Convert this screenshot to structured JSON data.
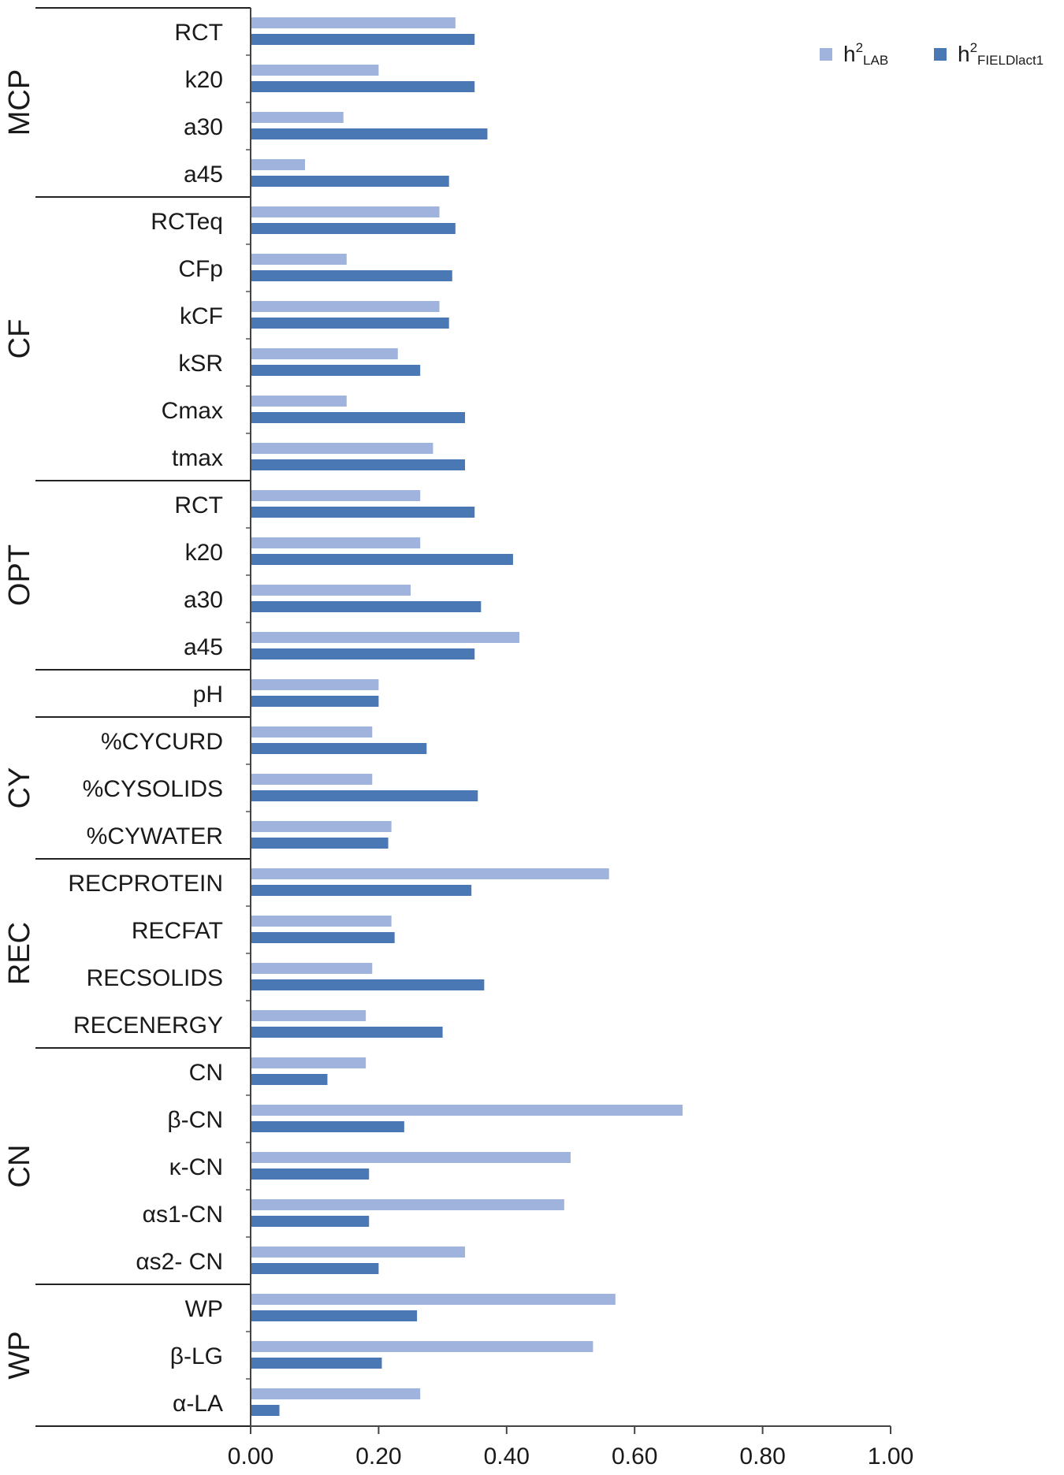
{
  "chart_data": {
    "type": "bar",
    "orientation": "horizontal",
    "xlim": [
      0,
      1
    ],
    "x_ticks": [
      "0.00",
      "0.20",
      "0.40",
      "0.60",
      "0.80",
      "1.00"
    ],
    "legend_placement": "top-right",
    "legend": [
      {
        "base": "h",
        "sup": "2",
        "sub": "LAB",
        "color": "#9fb3dc"
      },
      {
        "base": "h",
        "sup": "2",
        "sub": "FIELDlact1",
        "color": "#4a78b5"
      }
    ],
    "groups": [
      {
        "name": "MCP",
        "categories": [
          "RCT",
          "k20",
          "a30",
          "a45"
        ]
      },
      {
        "name": "CF",
        "categories": [
          "RCTeq",
          "CFp",
          "kCF",
          "kSR",
          "Cmax",
          "tmax"
        ]
      },
      {
        "name": "OPT",
        "categories": [
          "RCT",
          "k20",
          "a30",
          "a45"
        ]
      },
      {
        "name": "",
        "categories": [
          "pH"
        ]
      },
      {
        "name": "CY",
        "categories": [
          "%CYCURD",
          "%CYSOLIDS",
          "%CYWATER"
        ]
      },
      {
        "name": "REC",
        "categories": [
          "RECPROTEIN",
          "RECFAT",
          "RECSOLIDS",
          "RECENERGY"
        ]
      },
      {
        "name": "CN",
        "categories": [
          "CN",
          "β-CN",
          "κ-CN",
          "αs1-CN",
          "αs2- CN"
        ]
      },
      {
        "name": "WP",
        "categories": [
          "WP",
          "β-LG",
          "α-LA"
        ]
      }
    ],
    "series": [
      {
        "values": [
          0.32,
          0.2,
          0.145,
          0.085,
          0.295,
          0.15,
          0.295,
          0.23,
          0.15,
          0.285,
          0.265,
          0.265,
          0.25,
          0.42,
          0.2,
          0.19,
          0.19,
          0.22,
          0.56,
          0.22,
          0.19,
          0.18,
          0.18,
          0.675,
          0.5,
          0.49,
          0.335,
          0.57,
          0.535,
          0.265
        ]
      },
      {
        "values": [
          0.35,
          0.35,
          0.37,
          0.31,
          0.32,
          0.315,
          0.31,
          0.265,
          0.335,
          0.335,
          0.35,
          0.41,
          0.36,
          0.35,
          0.2,
          0.275,
          0.355,
          0.215,
          0.345,
          0.225,
          0.365,
          0.3,
          0.12,
          0.24,
          0.185,
          0.185,
          0.2,
          0.26,
          0.205,
          0.045
        ]
      }
    ]
  }
}
